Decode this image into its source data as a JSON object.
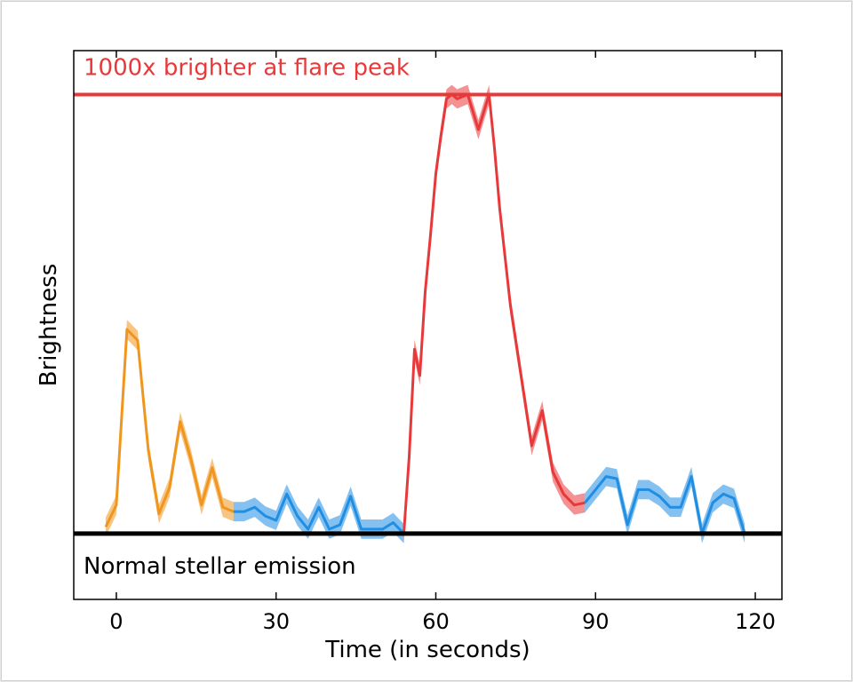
{
  "chart_data": {
    "type": "line",
    "title": "",
    "xlabel": "Time (in seconds)",
    "ylabel": "Brightness",
    "xlim": [
      -8,
      125
    ],
    "ylim": [
      -0.15,
      1.1
    ],
    "xticks": [
      0,
      30,
      60,
      90,
      120
    ],
    "yticks": [],
    "grid": false,
    "legend": "none",
    "colors": {
      "pre_flare": "#f0961e",
      "quiescent": "#1f8ee3",
      "flare": "#e8393a",
      "peak_line": "#e8393a",
      "baseline": "#000000"
    },
    "reference_lines": [
      {
        "label": "1000x brighter at flare peak",
        "y": 1.0,
        "color": "#e8393a"
      },
      {
        "label": "Normal stellar emission",
        "y": 0.0,
        "color": "#000000"
      }
    ],
    "uncertainty_band": 0.022,
    "series": [
      {
        "color_key": "pre_flare",
        "x": [
          -2,
          0,
          2,
          4,
          6,
          8,
          10,
          12,
          14,
          16,
          18,
          20,
          22
        ],
        "y": [
          0.015,
          0.065,
          0.465,
          0.44,
          0.19,
          0.045,
          0.105,
          0.255,
          0.17,
          0.065,
          0.15,
          0.06,
          0.05
        ]
      },
      {
        "color_key": "quiescent",
        "x": [
          22,
          24,
          26,
          28,
          30,
          32,
          34,
          36,
          38,
          40,
          42,
          44,
          46,
          48,
          50,
          52,
          54
        ],
        "y": [
          0.05,
          0.05,
          0.06,
          0.04,
          0.03,
          0.09,
          0.04,
          0.01,
          0.06,
          0.01,
          0.02,
          0.085,
          0.01,
          0.01,
          0.01,
          0.025,
          0.0
        ]
      },
      {
        "color_key": "flare",
        "x": [
          54,
          55,
          56,
          57,
          58,
          59,
          60,
          61,
          62,
          63,
          64,
          66,
          68,
          70,
          71,
          72,
          74,
          76,
          78,
          80,
          82,
          84,
          86,
          88
        ],
        "y": [
          0.0,
          0.175,
          0.42,
          0.36,
          0.55,
          0.68,
          0.82,
          0.91,
          0.99,
          1.0,
          0.99,
          1.0,
          0.92,
          1.0,
          0.88,
          0.74,
          0.52,
          0.36,
          0.2,
          0.28,
          0.14,
          0.09,
          0.065,
          0.07
        ]
      },
      {
        "color_key": "quiescent",
        "x": [
          88,
          90,
          92,
          94,
          96,
          98,
          100,
          102,
          104,
          106,
          108,
          110,
          112,
          114,
          116,
          118
        ],
        "y": [
          0.07,
          0.1,
          0.13,
          0.125,
          0.02,
          0.1,
          0.1,
          0.085,
          0.06,
          0.06,
          0.13,
          0.0,
          0.07,
          0.09,
          0.08,
          0.0
        ]
      }
    ]
  }
}
